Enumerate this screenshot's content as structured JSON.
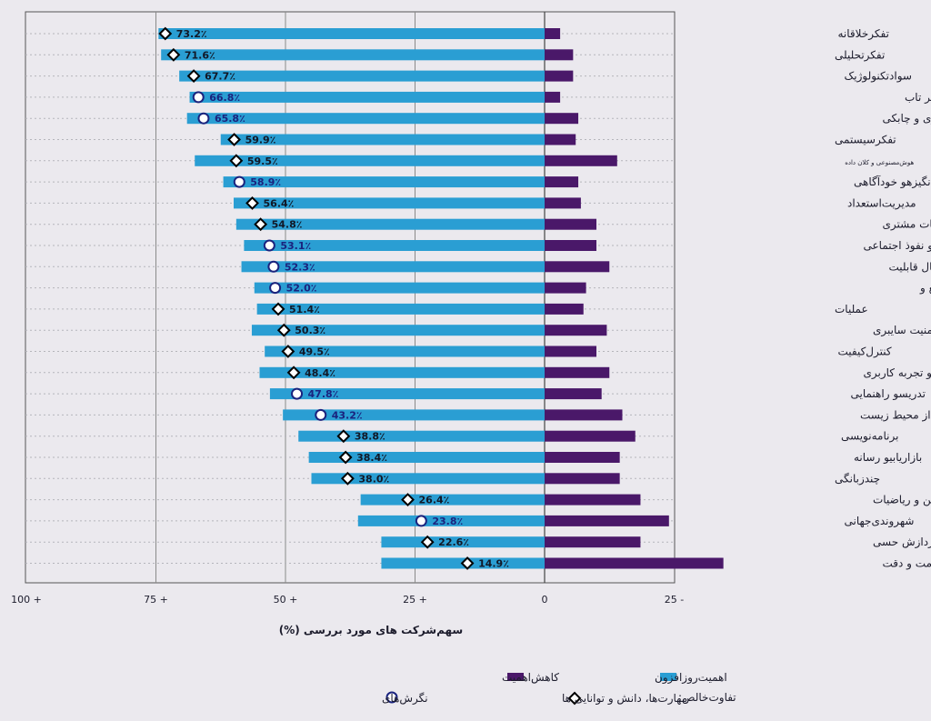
{
  "chart_data": {
    "type": "bar",
    "xlabel": "سهم‌شرکت های مورد بررسی (%)",
    "xlim": [
      100,
      -25
    ],
    "x_ticks": [
      {
        "value": 100,
        "label": "100 +"
      },
      {
        "value": 75,
        "label": "75 +"
      },
      {
        "value": 50,
        "label": "50 +"
      },
      {
        "value": 25,
        "label": "25 +"
      },
      {
        "value": 0,
        "label": "0"
      },
      {
        "value": -25,
        "label": "25 -"
      }
    ],
    "categories": [
      "تفکرخلاقانه",
      "تفکرتحلیلی",
      "سوادتکنولوژیک",
      "کنجکاویو یادگیری مادام العمر تاب",
      "آوری،انعطاف پذیری و چابکی",
      "تفکرسیستمی",
      "هوش‌مصنوعی و کلان داده",
      "انگیزهو خودآگاهی",
      "مدیریت‌استعداد",
      "خدمات‌گرایی و خدمات مشتری",
      "رهبریو نفوذ اجتماعی",
      "همدلیو گوش دادن فعال قابلیت",
      "اطمینانو توجه به جزئیات مدیریت منابع و",
      "عملیات",
      "شبکه‌ها و امنیت سایبری",
      "کنترل‌کیفیت",
      "طراحیو تجربه کاربری",
      "تدریسو راهنمایی",
      "حفاظت‌از محیط زیست",
      "برنامه‌نویسی",
      "بازاریابیو رسانه",
      "چندزبانگی",
      "خواندن،نوشتن و ریاضیات",
      "شهروندی‌جهانی",
      "توانایی‌های پردازش حسی",
      "مهارت‌دستی، استقامت و دقت"
    ],
    "series": [
      {
        "name": "اهمیت‌روزافزون",
        "color": "#2a9ed3",
        "values": [
          74.5,
          74.0,
          70.5,
          68.5,
          69.0,
          62.5,
          67.5,
          62.0,
          60.0,
          59.5,
          58.0,
          58.5,
          56.0,
          55.5,
          56.5,
          54.0,
          55.0,
          53.0,
          50.5,
          47.5,
          45.5,
          45.0,
          35.5,
          36.0,
          31.5,
          31.5
        ]
      },
      {
        "name": "کاهش‌اهمیت",
        "color": "#4a1869",
        "values": [
          3.0,
          5.5,
          5.5,
          3.0,
          6.5,
          6.0,
          14.0,
          6.5,
          7.0,
          10.0,
          10.0,
          12.5,
          8.0,
          7.5,
          12.0,
          10.0,
          12.5,
          11.0,
          15.0,
          17.5,
          14.5,
          14.5,
          18.5,
          24.0,
          18.5,
          34.5
        ]
      }
    ],
    "net_difference": {
      "legend_label": "تفاوت‌خالص:",
      "values": [
        73.2,
        71.6,
        67.7,
        66.8,
        65.8,
        59.9,
        59.5,
        58.9,
        56.4,
        54.8,
        53.1,
        52.3,
        52.0,
        51.4,
        50.3,
        49.5,
        48.4,
        47.8,
        43.2,
        38.8,
        38.4,
        38.0,
        26.4,
        23.8,
        22.6,
        14.9
      ],
      "labels": [
        "73.2٪",
        "71.6٪",
        "67.7٪",
        "66.8٪",
        "65.8٪",
        "59.9٪",
        "59.5٪",
        "58.9٪",
        "56.4٪",
        "54.8٪",
        "53.1٪",
        "52.3٪",
        "52.0٪",
        "51.4٪",
        "50.3٪",
        "49.5٪",
        "48.4٪",
        "47.8٪",
        "43.2٪",
        "38.8٪",
        "38.4٪",
        "38.0٪",
        "26.4٪",
        "23.8٪",
        "22.6٪",
        "14.9٪"
      ],
      "marker": [
        "skill",
        "skill",
        "skill",
        "attitude",
        "attitude",
        "skill",
        "skill",
        "attitude",
        "skill",
        "skill",
        "attitude",
        "attitude",
        "attitude",
        "skill",
        "skill",
        "skill",
        "skill",
        "attitude",
        "attitude",
        "skill",
        "skill",
        "skill",
        "skill",
        "attitude",
        "skill",
        "skill"
      ],
      "marker_types": [
        {
          "key": "skill",
          "name": "مهارت‌ها، دانش و توانایی ها",
          "shape": "diamond"
        },
        {
          "key": "attitude",
          "name": "نگرش‌های",
          "shape": "circle",
          "color": "#1a237e"
        }
      ]
    },
    "grid": {
      "x": true,
      "y": "dotted"
    }
  }
}
